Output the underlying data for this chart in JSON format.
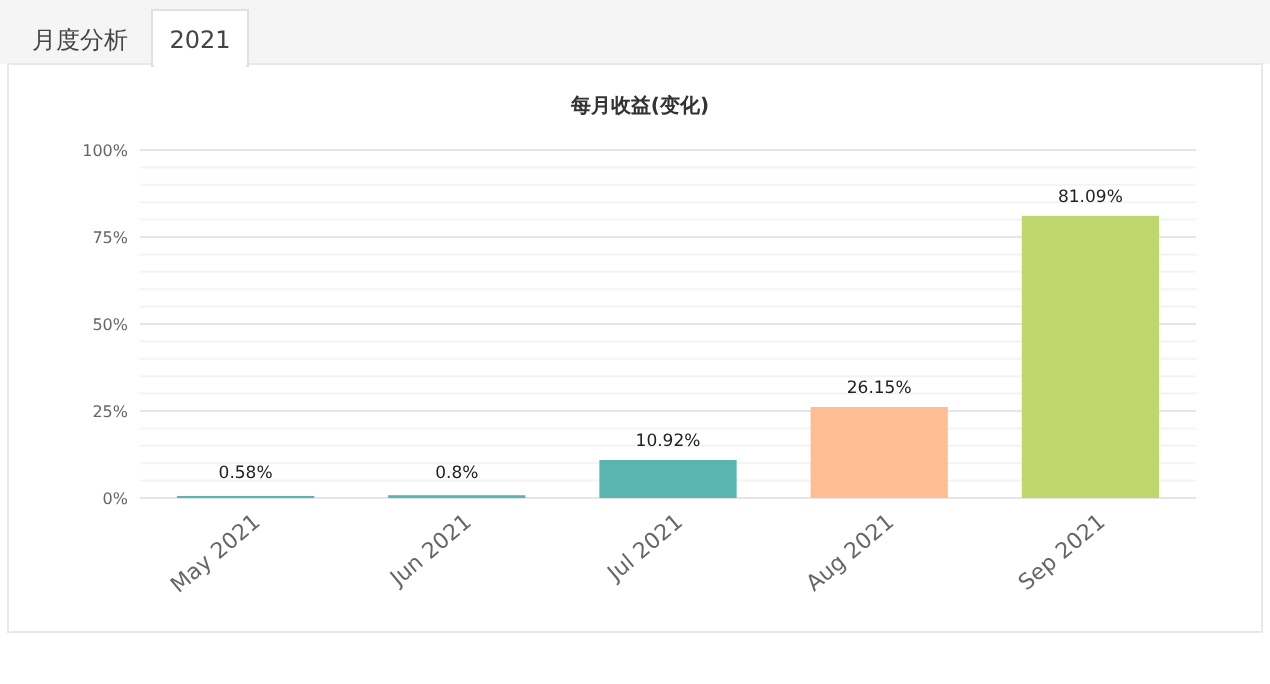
{
  "chart_data": {
    "type": "bar",
    "title": "每月收益(变化)",
    "annotations": [
      "月度分析",
      "2021"
    ],
    "categories": [
      "May 2021",
      "Jun 2021",
      "Jul 2021",
      "Aug 2021",
      "Sep 2021"
    ],
    "values": [
      0.58,
      0.8,
      10.92,
      26.15,
      81.09
    ],
    "colors": [
      "#5ab4b0",
      "#5ab4b0",
      "#5ab4b0",
      "#ffbd94",
      "#bed76e"
    ],
    "value_labels": [
      "0.58%",
      "0.8%",
      "10.92%",
      "26.15%",
      "81.09%"
    ],
    "ylim": [
      0,
      100
    ],
    "yticks": [
      {
        "value": 0,
        "label": "0%"
      },
      {
        "value": 25,
        "label": "25%"
      },
      {
        "value": 50,
        "label": "50%"
      },
      {
        "value": 75,
        "label": "75%"
      },
      {
        "value": 100,
        "label": "100%"
      }
    ],
    "grid": true
  }
}
